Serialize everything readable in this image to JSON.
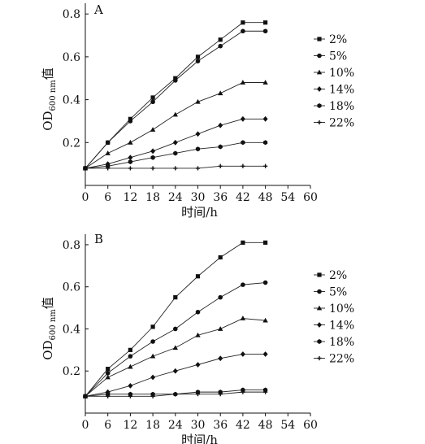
{
  "chart_data": [
    {
      "type": "line",
      "panel_label": "A",
      "xlabel": "时间/h",
      "ylabel": {
        "main": "OD",
        "sub": "600 nm",
        "suffix": "值"
      },
      "xlim": [
        0,
        60
      ],
      "ylim": [
        0,
        0.85
      ],
      "xticks": [
        0,
        6,
        12,
        18,
        24,
        30,
        36,
        42,
        48,
        54,
        60
      ],
      "yticks": [
        0.2,
        0.4,
        0.6,
        0.8
      ],
      "x": [
        0,
        6,
        12,
        18,
        24,
        30,
        36,
        42,
        48
      ],
      "grid": false,
      "legend_position": "right",
      "series": [
        {
          "name": "2%",
          "marker": "square",
          "values": [
            0.08,
            0.2,
            0.31,
            0.41,
            0.5,
            0.6,
            0.68,
            0.76,
            0.76
          ]
        },
        {
          "name": "5%",
          "marker": "circle",
          "values": [
            0.08,
            0.2,
            0.3,
            0.39,
            0.49,
            0.58,
            0.65,
            0.72,
            0.72
          ]
        },
        {
          "name": "10%",
          "marker": "triangle",
          "values": [
            0.08,
            0.15,
            0.2,
            0.26,
            0.33,
            0.39,
            0.43,
            0.48,
            0.48
          ]
        },
        {
          "name": "14%",
          "marker": "diamond",
          "values": [
            0.08,
            0.1,
            0.13,
            0.16,
            0.2,
            0.24,
            0.28,
            0.31,
            0.31
          ]
        },
        {
          "name": "18%",
          "marker": "hexagon",
          "values": [
            0.08,
            0.09,
            0.11,
            0.13,
            0.15,
            0.17,
            0.18,
            0.2,
            0.2
          ]
        },
        {
          "name": "22%",
          "marker": "star",
          "values": [
            0.08,
            0.08,
            0.08,
            0.08,
            0.08,
            0.08,
            0.09,
            0.09,
            0.09
          ]
        }
      ]
    },
    {
      "type": "line",
      "panel_label": "B",
      "xlabel": "时间/h",
      "ylabel": {
        "main": "OD",
        "sub": "600 nm",
        "suffix": "值"
      },
      "xlim": [
        0,
        60
      ],
      "ylim": [
        0,
        0.85
      ],
      "xticks": [
        0,
        6,
        12,
        18,
        24,
        30,
        36,
        42,
        48,
        54,
        60
      ],
      "yticks": [
        0.2,
        0.4,
        0.6,
        0.8
      ],
      "x": [
        0,
        6,
        12,
        18,
        24,
        30,
        36,
        42,
        48
      ],
      "grid": false,
      "legend_position": "right",
      "series": [
        {
          "name": "2%",
          "marker": "square",
          "values": [
            0.08,
            0.21,
            0.3,
            0.41,
            0.55,
            0.65,
            0.74,
            0.81,
            0.81
          ]
        },
        {
          "name": "5%",
          "marker": "circle",
          "values": [
            0.08,
            0.19,
            0.27,
            0.34,
            0.4,
            0.48,
            0.55,
            0.61,
            0.62
          ]
        },
        {
          "name": "10%",
          "marker": "triangle",
          "values": [
            0.08,
            0.17,
            0.22,
            0.27,
            0.31,
            0.37,
            0.4,
            0.45,
            0.44
          ]
        },
        {
          "name": "14%",
          "marker": "diamond",
          "values": [
            0.08,
            0.1,
            0.13,
            0.17,
            0.2,
            0.23,
            0.26,
            0.28,
            0.28
          ]
        },
        {
          "name": "18%",
          "marker": "hexagon",
          "values": [
            0.08,
            0.09,
            0.09,
            0.09,
            0.09,
            0.1,
            0.1,
            0.11,
            0.11
          ]
        },
        {
          "name": "22%",
          "marker": "star",
          "values": [
            0.08,
            0.08,
            0.08,
            0.08,
            0.09,
            0.09,
            0.09,
            0.1,
            0.1
          ]
        }
      ]
    }
  ]
}
